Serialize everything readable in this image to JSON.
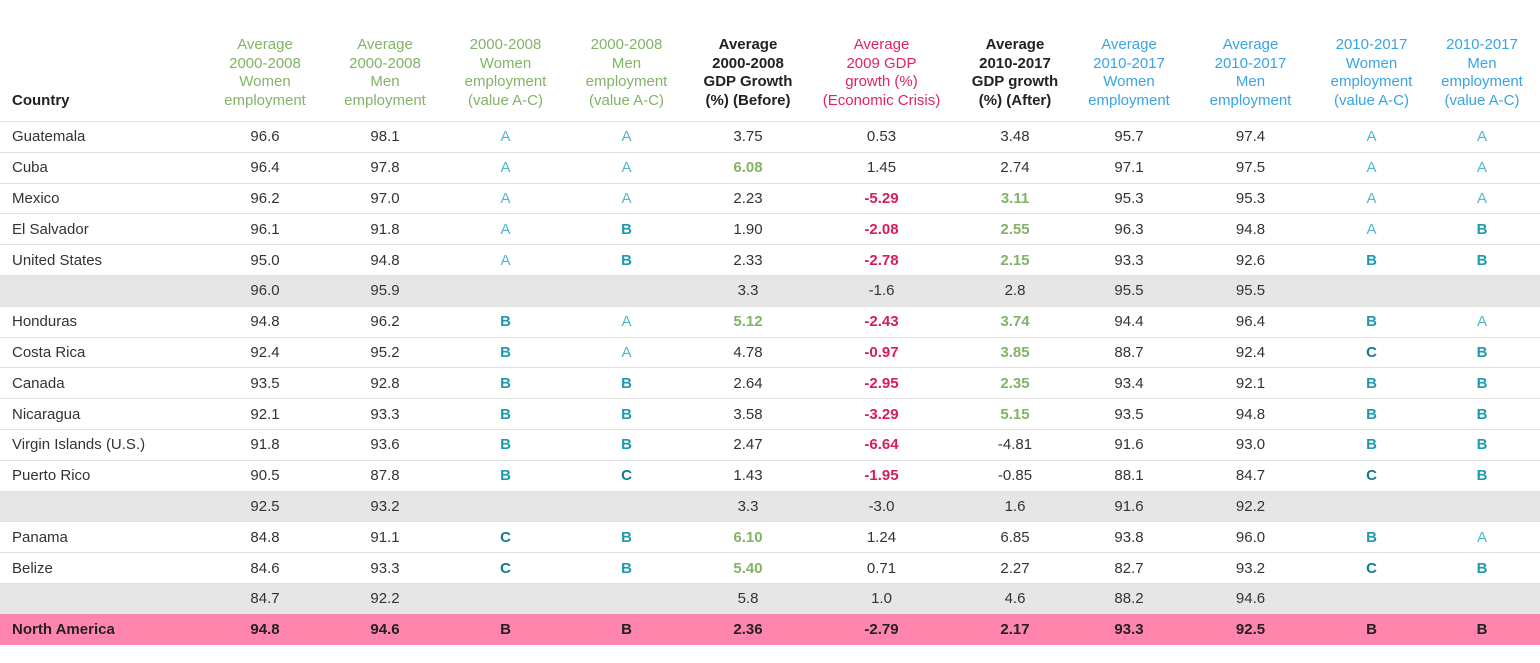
{
  "chart_data": {
    "type": "table",
    "headers": [
      "Country",
      "Average\n2000-2008\nWomen\nemployment",
      "Average\n2000-2008\nMen\nemployment",
      "2000-2008\nWomen\nemployment\n(value A-C)",
      "2000-2008\nMen\nemployment\n(value A-C)",
      "Average\n2000-2008\nGDP Growth\n(%) (Before)",
      "Average\n2009 GDP\ngrowth (%)\n(Economic Crisis)",
      "Average\n2010-2017\nGDP growth\n(%) (After)",
      "Average\n2010-2017\nWomen\nemployment",
      "Average\n2010-2017\nMen\nemployment",
      "2010-2017\nWomen\nemployment\n(value A-C)",
      "2010-2017\nMen\nemployment\n(value A-C)"
    ],
    "header_colors": [
      "#222222",
      "#82b366",
      "#82b366",
      "#82b366",
      "#82b366",
      "#222222",
      "#e0245e",
      "#222222",
      "#3aa3e3",
      "#3aa3e3",
      "#3aa3e3",
      "#3aa3e3"
    ],
    "rows": [
      {
        "kind": "data",
        "cells": [
          "Guatemala",
          "96.6",
          "98.1",
          "A",
          "A",
          "3.75",
          "0.53",
          "3.48",
          "95.7",
          "97.4",
          "A",
          "A"
        ],
        "highlight": {}
      },
      {
        "kind": "data",
        "cells": [
          "Cuba",
          "96.4",
          "97.8",
          "A",
          "A",
          "6.08",
          "1.45",
          "2.74",
          "97.1",
          "97.5",
          "A",
          "A"
        ],
        "highlight": {
          "5": "g"
        }
      },
      {
        "kind": "data",
        "cells": [
          "Mexico",
          "96.2",
          "97.0",
          "A",
          "A",
          "2.23",
          "-5.29",
          "3.11",
          "95.3",
          "95.3",
          "A",
          "A"
        ],
        "highlight": {
          "6": "r",
          "7": "g"
        }
      },
      {
        "kind": "data",
        "cells": [
          "El Salvador",
          "96.1",
          "91.8",
          "A",
          "B",
          "1.90",
          "-2.08",
          "2.55",
          "96.3",
          "94.8",
          "A",
          "B"
        ],
        "highlight": {
          "6": "r",
          "7": "g"
        }
      },
      {
        "kind": "data",
        "cells": [
          "United States",
          "95.0",
          "94.8",
          "A",
          "B",
          "2.33",
          "-2.78",
          "2.15",
          "93.3",
          "92.6",
          "B",
          "B"
        ],
        "highlight": {
          "6": "r",
          "7": "g"
        }
      },
      {
        "kind": "subtotal",
        "cells": [
          "",
          "96.0",
          "95.9",
          "",
          "",
          "3.3",
          "-1.6",
          "2.8",
          "95.5",
          "95.5",
          "",
          ""
        ],
        "highlight": {}
      },
      {
        "kind": "data",
        "cells": [
          "Honduras",
          "94.8",
          "96.2",
          "B",
          "A",
          "5.12",
          "-2.43",
          "3.74",
          "94.4",
          "96.4",
          "B",
          "A"
        ],
        "highlight": {
          "5": "g",
          "6": "r",
          "7": "g"
        }
      },
      {
        "kind": "data",
        "cells": [
          "Costa Rica",
          "92.4",
          "95.2",
          "B",
          "A",
          "4.78",
          "-0.97",
          "3.85",
          "88.7",
          "92.4",
          "C",
          "B"
        ],
        "highlight": {
          "6": "r",
          "7": "g"
        }
      },
      {
        "kind": "data",
        "cells": [
          "Canada",
          "93.5",
          "92.8",
          "B",
          "B",
          "2.64",
          "-2.95",
          "2.35",
          "93.4",
          "92.1",
          "B",
          "B"
        ],
        "highlight": {
          "6": "r",
          "7": "g"
        }
      },
      {
        "kind": "data",
        "cells": [
          "Nicaragua",
          "92.1",
          "93.3",
          "B",
          "B",
          "3.58",
          "-3.29",
          "5.15",
          "93.5",
          "94.8",
          "B",
          "B"
        ],
        "highlight": {
          "6": "r",
          "7": "g"
        }
      },
      {
        "kind": "data",
        "cells": [
          "Virgin Islands (U.S.)",
          "91.8",
          "93.6",
          "B",
          "B",
          "2.47",
          "-6.64",
          "-4.81",
          "91.6",
          "93.0",
          "B",
          "B"
        ],
        "highlight": {
          "6": "r"
        }
      },
      {
        "kind": "data",
        "cells": [
          "Puerto Rico",
          "90.5",
          "87.8",
          "B",
          "C",
          "1.43",
          "-1.95",
          "-0.85",
          "88.1",
          "84.7",
          "C",
          "B"
        ],
        "highlight": {
          "6": "r"
        }
      },
      {
        "kind": "subtotal",
        "cells": [
          "",
          "92.5",
          "93.2",
          "",
          "",
          "3.3",
          "-3.0",
          "1.6",
          "91.6",
          "92.2",
          "",
          ""
        ],
        "highlight": {}
      },
      {
        "kind": "data",
        "cells": [
          "Panama",
          "84.8",
          "91.1",
          "C",
          "B",
          "6.10",
          "1.24",
          "6.85",
          "93.8",
          "96.0",
          "B",
          "A"
        ],
        "highlight": {
          "5": "g"
        }
      },
      {
        "kind": "data",
        "cells": [
          "Belize",
          "84.6",
          "93.3",
          "C",
          "B",
          "5.40",
          "0.71",
          "2.27",
          "82.7",
          "93.2",
          "C",
          "B"
        ],
        "highlight": {
          "5": "g"
        }
      },
      {
        "kind": "subtotal",
        "cells": [
          "",
          "84.7",
          "92.2",
          "",
          "",
          "5.8",
          "1.0",
          "4.6",
          "88.2",
          "94.6",
          "",
          ""
        ],
        "highlight": {}
      },
      {
        "kind": "total",
        "cells": [
          "North America",
          "94.8",
          "94.6",
          "B",
          "B",
          "2.36",
          "-2.79",
          "2.17",
          "93.3",
          "92.5",
          "B",
          "B"
        ],
        "highlight": {}
      }
    ],
    "colors": {
      "green": "#82b366",
      "red": "#e0245e",
      "blue": "#3aa3e3",
      "teal": "#1f9aad",
      "subtotal_bg": "#e6e6e6",
      "total_bg": "#ff85ad"
    }
  }
}
